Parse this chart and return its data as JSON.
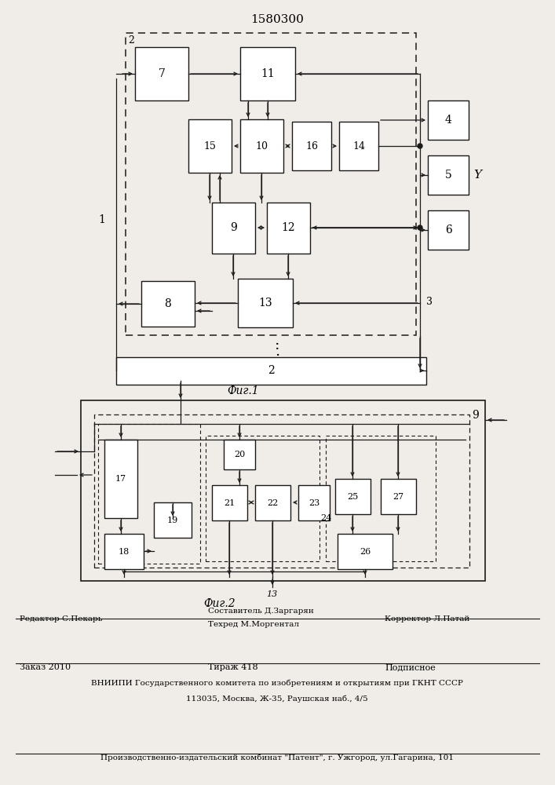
{
  "title": "1580300",
  "fig1_label": "Фиг.1",
  "fig2_label": "Фиг.2",
  "footer_line1": "Составитель Д.Заргарян",
  "footer_line2": "Техред М.Моргентал",
  "footer_editor": "Редактор С.Пекарь",
  "footer_corrector": "Корректор Л.Патай",
  "footer_order": "Заказ 2010",
  "footer_tirazh": "Тираж 418",
  "footer_podpisnoe": "Подписное",
  "footer_vniiipi": "ВНИИПИ Государственного комитета по изобретениям и открытиям при ГКНТ СССР",
  "footer_address": "113035, Москва, Ж-35, Раушская наб., 4/5",
  "footer_proizv": "Производственно-издательский комбинат \"Патент\", г. Ужгород, ул.Гагарина, 101",
  "bg_color": "#f0ede8",
  "box_color": "#1a1a1a",
  "line_color": "#1a1a1a"
}
